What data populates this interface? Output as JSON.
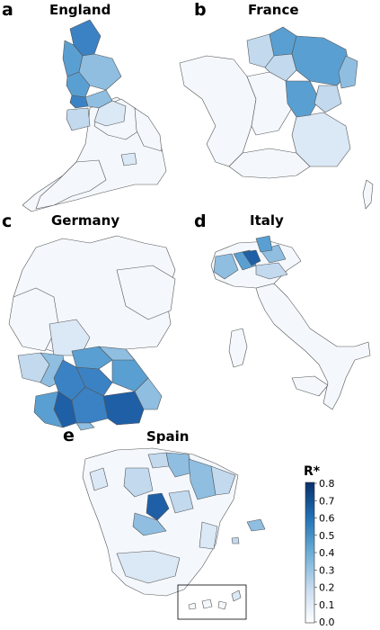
{
  "panels": {
    "a": {
      "letter": "a",
      "title": "England"
    },
    "b": {
      "letter": "b",
      "title": "France"
    },
    "c": {
      "letter": "c",
      "title": "Germany"
    },
    "d": {
      "letter": "d",
      "title": "Italy"
    },
    "e": {
      "letter": "e",
      "title": "Spain"
    }
  },
  "colorbar": {
    "title": "R*",
    "ticks": [
      "0.8",
      "0.7",
      "0.6",
      "0.5",
      "0.4",
      "0.3",
      "0.2",
      "0.1",
      "0.0"
    ],
    "min": 0.0,
    "max": 0.8,
    "color_low": "#ffffff",
    "color_high": "#08306b"
  },
  "map_colors": {
    "very_light": "#f4f8fd",
    "light": "#dbe8f5",
    "pale": "#c2d9ee",
    "medium": "#8fbee1",
    "strong": "#5a9fd1",
    "darker": "#3b82c4",
    "darkest": "#1f5fa6"
  }
}
